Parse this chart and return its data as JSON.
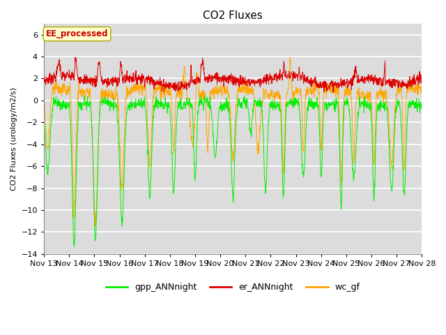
{
  "title": "CO2 Fluxes",
  "ylabel": "CO2 Fluxes (urology/m2/s)",
  "ylim": [
    -14,
    7
  ],
  "yticks": [
    -14,
    -12,
    -10,
    -8,
    -6,
    -4,
    -2,
    0,
    2,
    4,
    6
  ],
  "xticklabels": [
    "Nov 13",
    "Nov 14",
    "Nov 15",
    "Nov 16",
    "Nov 17",
    "Nov 18",
    "Nov 19",
    "Nov 20",
    "Nov 21",
    "Nov 22",
    "Nov 23",
    "Nov 24",
    "Nov 25",
    "Nov 26",
    "Nov 27",
    "Nov 28"
  ],
  "colors": {
    "gpp": "#00ee00",
    "er": "#dd0000",
    "wc": "#ffa500"
  },
  "legend_labels": [
    "gpp_ANNnight",
    "er_ANNnight",
    "wc_gf"
  ],
  "annotation_text": "EE_processed",
  "annotation_bbox": {
    "facecolor": "#ffffcc",
    "edgecolor": "#aaaa00",
    "boxstyle": "round,pad=0.3"
  },
  "background_color": "#dcdcdc",
  "plot_bg": "#dcdcdc",
  "grid_color": "#c0c0c0",
  "n_days": 15,
  "points_per_day": 96
}
